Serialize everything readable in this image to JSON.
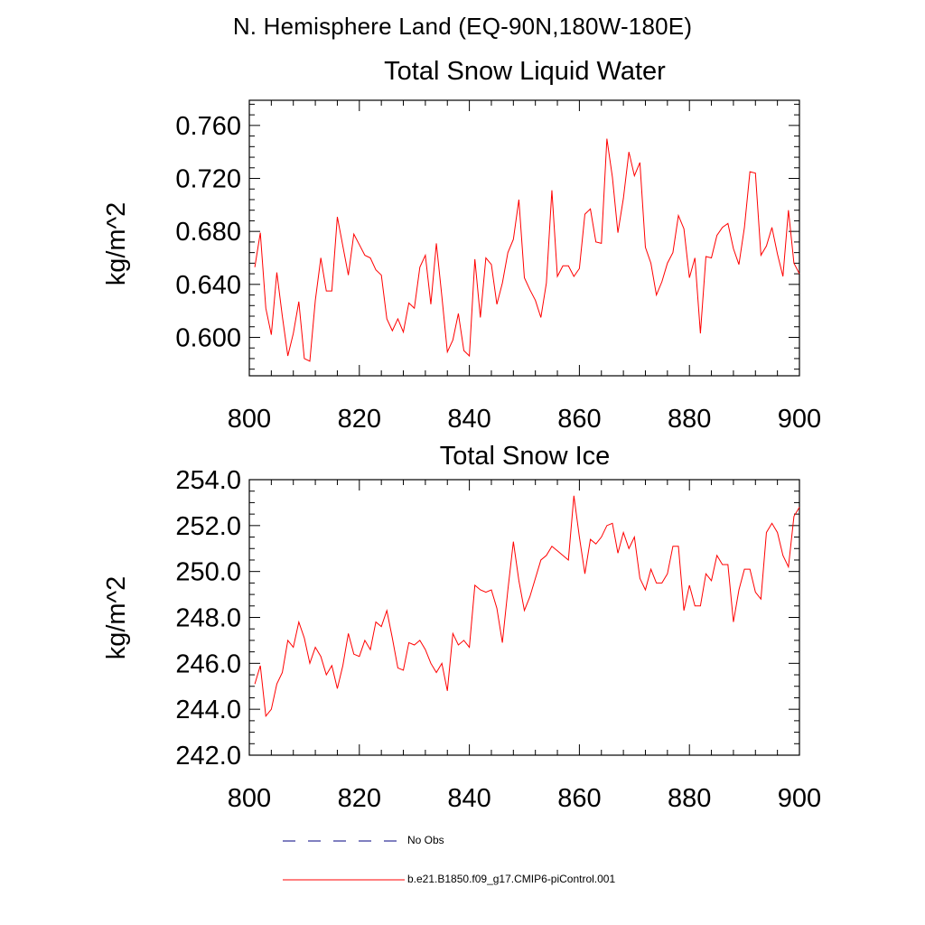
{
  "figure": {
    "region_title": "N. Hemisphere Land (EQ-90N,180W-180E)"
  },
  "chart_data": [
    {
      "type": "line",
      "title": "Total Snow Liquid Water",
      "xlabel": "",
      "ylabel": "kg/m^2",
      "xlim": [
        800,
        900
      ],
      "ylim": [
        0.571,
        0.779
      ],
      "x_ticks": [
        800,
        820,
        840,
        860,
        880,
        900
      ],
      "x_tick_labels": [
        "800",
        "820",
        "840",
        "860",
        "880",
        "900"
      ],
      "y_ticks": [
        0.6,
        0.64,
        0.68,
        0.72,
        0.76
      ],
      "y_tick_labels": [
        "0.600",
        "0.640",
        "0.680",
        "0.720",
        "0.760"
      ],
      "grid": false,
      "x": [
        801,
        802,
        803,
        804,
        805,
        806,
        807,
        808,
        809,
        810,
        811,
        812,
        813,
        814,
        815,
        816,
        817,
        818,
        819,
        820,
        821,
        822,
        823,
        824,
        825,
        826,
        827,
        828,
        829,
        830,
        831,
        832,
        833,
        834,
        835,
        836,
        837,
        838,
        839,
        840,
        841,
        842,
        843,
        844,
        845,
        846,
        847,
        848,
        849,
        850,
        851,
        852,
        853,
        854,
        855,
        856,
        857,
        858,
        859,
        860,
        861,
        862,
        863,
        864,
        865,
        866,
        867,
        868,
        869,
        870,
        871,
        872,
        873,
        874,
        875,
        876,
        877,
        878,
        879,
        880,
        881,
        882,
        883,
        884,
        885,
        886,
        887,
        888,
        889,
        890,
        891,
        892,
        893,
        894,
        895,
        896,
        897,
        898,
        899,
        900
      ],
      "series": [
        {
          "name": "b.e21.B1850.f09_g17.CMIP6-piControl.001",
          "color": "#ff0000",
          "values": [
            0.653,
            0.679,
            0.622,
            0.602,
            0.649,
            0.616,
            0.586,
            0.603,
            0.627,
            0.584,
            0.582,
            0.628,
            0.66,
            0.635,
            0.635,
            0.691,
            0.669,
            0.647,
            0.678,
            0.67,
            0.662,
            0.66,
            0.651,
            0.647,
            0.614,
            0.605,
            0.614,
            0.604,
            0.626,
            0.622,
            0.653,
            0.662,
            0.625,
            0.671,
            0.631,
            0.589,
            0.598,
            0.618,
            0.59,
            0.586,
            0.659,
            0.615,
            0.66,
            0.655,
            0.625,
            0.641,
            0.664,
            0.674,
            0.704,
            0.645,
            0.636,
            0.628,
            0.615,
            0.641,
            0.711,
            0.646,
            0.654,
            0.654,
            0.646,
            0.652,
            0.693,
            0.697,
            0.672,
            0.671,
            0.75,
            0.721,
            0.679,
            0.705,
            0.74,
            0.722,
            0.732,
            0.668,
            0.656,
            0.632,
            0.642,
            0.656,
            0.664,
            0.692,
            0.682,
            0.645,
            0.66,
            0.603,
            0.661,
            0.66,
            0.677,
            0.683,
            0.686,
            0.667,
            0.655,
            0.683,
            0.725,
            0.724,
            0.662,
            0.669,
            0.683,
            0.663,
            0.646,
            0.696,
            0.656,
            0.648
          ]
        }
      ]
    },
    {
      "type": "line",
      "title": "Total Snow Ice",
      "xlabel": "",
      "ylabel": "kg/m^2",
      "xlim": [
        800,
        900
      ],
      "ylim": [
        242.0,
        254.0
      ],
      "x_ticks": [
        800,
        820,
        840,
        860,
        880,
        900
      ],
      "x_tick_labels": [
        "800",
        "820",
        "840",
        "860",
        "880",
        "900"
      ],
      "y_ticks": [
        242,
        244,
        246,
        248,
        250,
        252,
        254
      ],
      "y_tick_labels": [
        "242.0",
        "244.0",
        "246.0",
        "248.0",
        "250.0",
        "252.0",
        "254.0"
      ],
      "grid": false,
      "x": [
        801,
        802,
        803,
        804,
        805,
        806,
        807,
        808,
        809,
        810,
        811,
        812,
        813,
        814,
        815,
        816,
        817,
        818,
        819,
        820,
        821,
        822,
        823,
        824,
        825,
        826,
        827,
        828,
        829,
        830,
        831,
        832,
        833,
        834,
        835,
        836,
        837,
        838,
        839,
        840,
        841,
        842,
        843,
        844,
        845,
        846,
        847,
        848,
        849,
        850,
        851,
        852,
        853,
        854,
        855,
        856,
        857,
        858,
        859,
        860,
        861,
        862,
        863,
        864,
        865,
        866,
        867,
        868,
        869,
        870,
        871,
        872,
        873,
        874,
        875,
        876,
        877,
        878,
        879,
        880,
        881,
        882,
        883,
        884,
        885,
        886,
        887,
        888,
        889,
        890,
        891,
        892,
        893,
        894,
        895,
        896,
        897,
        898,
        899,
        900
      ],
      "series": [
        {
          "name": "b.e21.B1850.f09_g17.CMIP6-piControl.001",
          "color": "#ff0000",
          "values": [
            245.1,
            245.9,
            243.7,
            244.0,
            245.1,
            245.6,
            247.0,
            246.7,
            247.8,
            247.1,
            246.0,
            246.7,
            246.3,
            245.5,
            245.9,
            244.9,
            245.9,
            247.3,
            246.4,
            246.3,
            247.0,
            246.6,
            247.8,
            247.6,
            248.3,
            247.1,
            245.8,
            245.7,
            246.9,
            246.8,
            247.0,
            246.6,
            246.0,
            245.6,
            246.0,
            244.8,
            247.3,
            246.8,
            247.0,
            246.7,
            249.4,
            249.2,
            249.1,
            249.2,
            248.4,
            246.9,
            249.2,
            251.3,
            249.6,
            248.3,
            248.9,
            249.7,
            250.5,
            250.7,
            251.1,
            250.9,
            250.7,
            250.5,
            253.3,
            251.5,
            249.9,
            251.4,
            251.2,
            251.5,
            252.0,
            252.1,
            250.8,
            251.7,
            251.0,
            251.5,
            249.7,
            249.2,
            250.1,
            249.5,
            249.5,
            249.9,
            251.1,
            251.1,
            248.3,
            249.4,
            248.5,
            248.5,
            249.9,
            249.6,
            250.7,
            250.3,
            250.3,
            247.8,
            249.2,
            250.1,
            250.1,
            249.1,
            248.8,
            251.7,
            252.1,
            251.7,
            250.7,
            250.2,
            252.4,
            252.8
          ]
        }
      ]
    }
  ],
  "legend": {
    "placement": "bottom-center",
    "entries": [
      {
        "label": "No Obs",
        "style": "dashed",
        "color": "#000080"
      },
      {
        "label": "b.e21.B1850.f09_g17.CMIP6-piControl.001",
        "style": "solid",
        "color": "#ff0000"
      }
    ]
  }
}
